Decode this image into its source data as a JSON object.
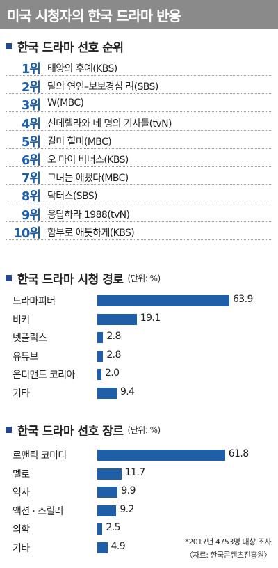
{
  "title": "미국 시청자의 한국 드라마 반응",
  "colors": {
    "header_bg": "#8a8a8a",
    "bar": "#1f5fa8",
    "bullet": "#24488f",
    "rank": "#1f5fa8"
  },
  "ranking": {
    "title": "한국 드라마 선호 순위",
    "items": [
      {
        "rank": "1위",
        "title": "태양의 후예(KBS)"
      },
      {
        "rank": "2위",
        "title": "달의 연인–보보경심 려(SBS)"
      },
      {
        "rank": "3위",
        "title": "W(MBC)"
      },
      {
        "rank": "4위",
        "title": "신데렐라와 네 명의 기사들(tvN)"
      },
      {
        "rank": "5위",
        "title": "킬미 힐미(MBC)"
      },
      {
        "rank": "6위",
        "title": "오 마이 비너스(KBS)"
      },
      {
        "rank": "7위",
        "title": "그녀는 예뻤다(MBC)"
      },
      {
        "rank": "8위",
        "title": "닥터스(SBS)"
      },
      {
        "rank": "9위",
        "title": "응답하라 1988(tvN)"
      },
      {
        "rank": "10위",
        "title": "함부로 애틋하게(KBS)"
      }
    ]
  },
  "chart_data": [
    {
      "type": "bar",
      "title": "한국 드라마 시청 경로",
      "unit": "(단위: %)",
      "categories": [
        "드라마피버",
        "비키",
        "넷플릭스",
        "유튜브",
        "온디맨드 코리아",
        "기타"
      ],
      "values": [
        63.9,
        19.1,
        2.8,
        2.8,
        2.0,
        9.4
      ],
      "value_labels": [
        "63.9",
        "19.1",
        "2.8",
        "2.8",
        "2.0",
        "9.4"
      ]
    },
    {
      "type": "bar",
      "title": "한국 드라마 선호 장르",
      "unit": "(단위: %)",
      "categories": [
        "로맨틱 코미디",
        "멜로",
        "역사",
        "액션 · 스릴러",
        "의학",
        "기타"
      ],
      "values": [
        61.8,
        11.7,
        9.9,
        9.2,
        2.5,
        4.9
      ],
      "value_labels": [
        "61.8",
        "11.7",
        "9.9",
        "9.2",
        "2.5",
        "4.9"
      ]
    }
  ],
  "footnote": {
    "survey": "*2017년 4753명 대상 조사",
    "source": "〈자료: 한국콘텐츠진흥원〉"
  }
}
